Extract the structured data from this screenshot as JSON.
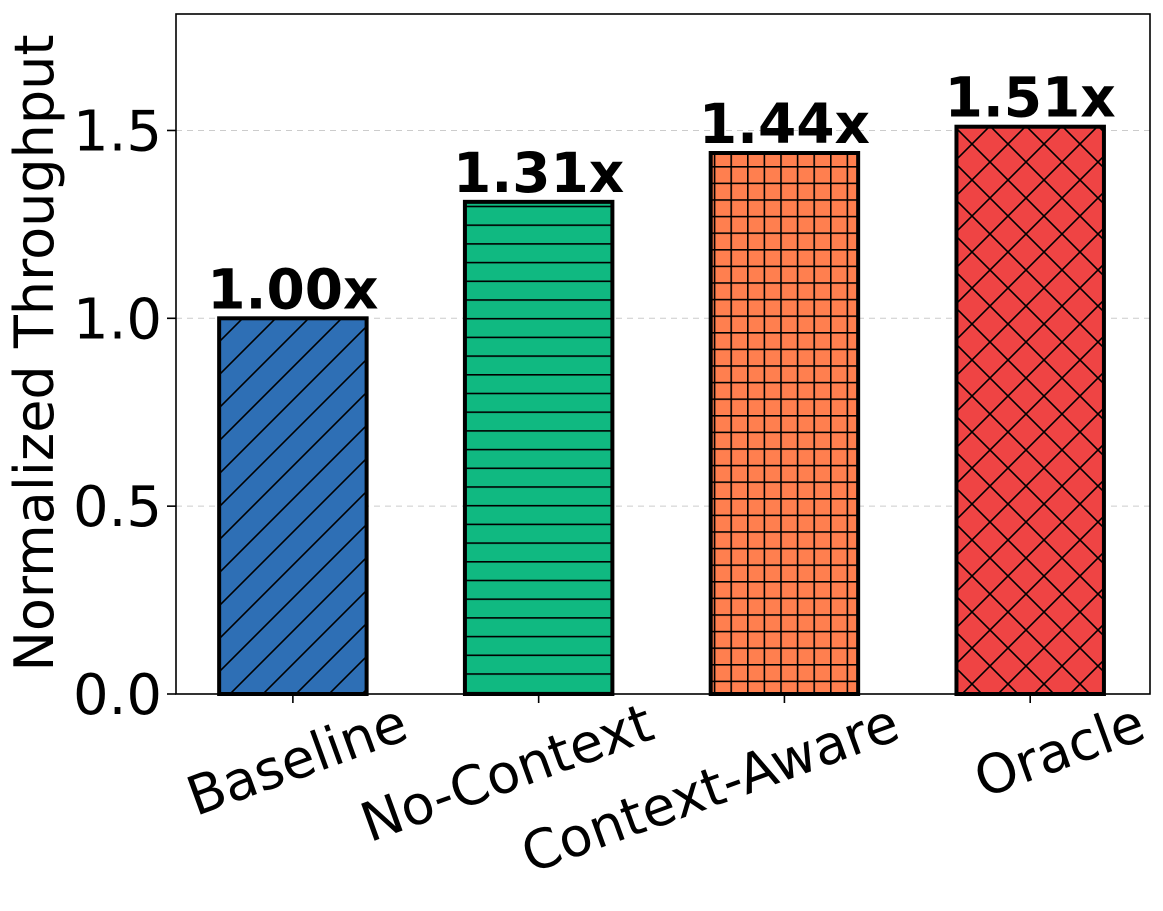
{
  "chart_data": {
    "type": "bar",
    "title": "",
    "xlabel": "",
    "ylabel": "Normalized Throughput",
    "ylim": [
      0,
      1.81
    ],
    "yticks": [
      0.0,
      0.5,
      1.0,
      1.5
    ],
    "ytick_labels": [
      "0.0",
      "0.5",
      "1.0",
      "1.5"
    ],
    "grid": "horizontal dashed",
    "categories": [
      "Baseline",
      "No-Context",
      "Context-Aware",
      "Oracle"
    ],
    "values": [
      1.0,
      1.31,
      1.44,
      1.51
    ],
    "data_labels": [
      "1.00x",
      "1.31x",
      "1.44x",
      "1.51x"
    ],
    "colors": [
      "#2E6FB5",
      "#10B981",
      "#FF7F4F",
      "#EF4444"
    ],
    "hatches": [
      "diagonal",
      "horizontal",
      "grid",
      "crosshatch"
    ]
  }
}
